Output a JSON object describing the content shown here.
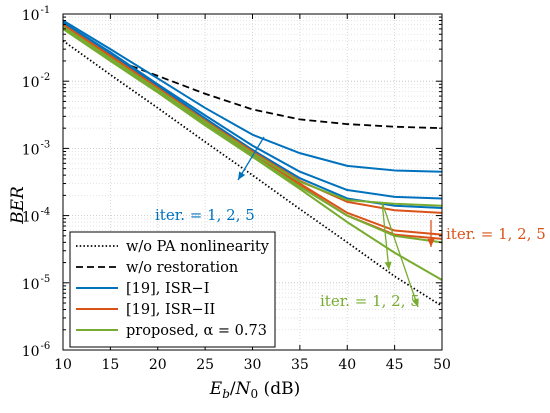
{
  "chart_data": {
    "type": "line",
    "xlabel_parts": [
      "E",
      "b",
      "/",
      "N",
      "0",
      " (dB)"
    ],
    "ylabel": "BER",
    "xlim": [
      10,
      50
    ],
    "ylim_log10": [
      -6,
      -1
    ],
    "y_scale": "log",
    "xticks": [
      10,
      15,
      20,
      25,
      30,
      35,
      40,
      45,
      50
    ],
    "ytick_labels": [
      {
        "exp": -1,
        "label": "10",
        "sup": "-1"
      },
      {
        "exp": -2,
        "label": "10",
        "sup": "-2"
      },
      {
        "exp": -3,
        "label": "10",
        "sup": "-3"
      },
      {
        "exp": -4,
        "label": "10",
        "sup": "-4"
      },
      {
        "exp": -5,
        "label": "10",
        "sup": "-5"
      },
      {
        "exp": -6,
        "label": "10",
        "sup": "-6"
      }
    ],
    "grid": true,
    "legend_position": "bottom-left",
    "series": [
      {
        "name": "w/o PA nonlinearity",
        "color": "#000000",
        "style": "dotted",
        "x": [
          10,
          15,
          20,
          25,
          30,
          35,
          40,
          45,
          50
        ],
        "y": [
          0.04,
          0.0125,
          0.004,
          0.00125,
          0.0004,
          0.000125,
          4e-05,
          1.25e-05,
          4.5e-06
        ]
      },
      {
        "name": "w/o restoration",
        "color": "#000000",
        "style": "dashed",
        "x": [
          15,
          20,
          25,
          30,
          35,
          40,
          45,
          50
        ],
        "y": [
          0.022,
          0.012,
          0.0065,
          0.0038,
          0.0027,
          0.0023,
          0.0021,
          0.002
        ]
      },
      {
        "name": "[19], ISR−I",
        "color": "#0072bd",
        "style": "solid",
        "x": [
          10,
          15,
          20,
          25,
          30,
          35,
          40,
          45,
          50
        ],
        "y": [
          0.08,
          0.03,
          0.011,
          0.004,
          0.0016,
          0.00085,
          0.00055,
          0.00047,
          0.00045
        ]
      },
      {
        "name": "",
        "color": "#0072bd",
        "style": "solid",
        "x": [
          10,
          15,
          20,
          25,
          30,
          35,
          40,
          45,
          50
        ],
        "y": [
          0.075,
          0.027,
          0.009,
          0.0031,
          0.0011,
          0.00045,
          0.00024,
          0.00019,
          0.00018
        ]
      },
      {
        "name": "",
        "color": "#0072bd",
        "style": "solid",
        "x": [
          10,
          15,
          20,
          25,
          30,
          35,
          40,
          45,
          50
        ],
        "y": [
          0.07,
          0.025,
          0.0085,
          0.0028,
          0.00095,
          0.00036,
          0.00018,
          0.00014,
          0.00013
        ]
      },
      {
        "name": "[19], ISR−II",
        "color": "#d95319",
        "style": "solid",
        "x": [
          10,
          15,
          20,
          25,
          30,
          35,
          40,
          45,
          50
        ],
        "y": [
          0.07,
          0.024,
          0.008,
          0.0026,
          0.0009,
          0.00033,
          0.00016,
          0.00012,
          0.00011
        ]
      },
      {
        "name": "",
        "color": "#d95319",
        "style": "solid",
        "x": [
          10,
          15,
          20,
          25,
          30,
          35,
          40,
          45,
          50
        ],
        "y": [
          0.068,
          0.023,
          0.0075,
          0.0025,
          0.00085,
          0.0003,
          0.00011,
          6e-05,
          5.2e-05
        ]
      },
      {
        "name": "",
        "color": "#d95319",
        "style": "solid",
        "x": [
          10,
          15,
          20,
          25,
          30,
          35,
          40,
          45,
          50
        ],
        "y": [
          0.065,
          0.022,
          0.0072,
          0.0024,
          0.0008,
          0.00028,
          0.0001,
          5.2e-05,
          4.5e-05
        ]
      },
      {
        "name": "proposed, α = 0.73",
        "color": "#77ac30",
        "style": "solid",
        "x": [
          10,
          15,
          20,
          25,
          30,
          35,
          40,
          45,
          50
        ],
        "y": [
          0.065,
          0.022,
          0.0075,
          0.0025,
          0.00085,
          0.00032,
          0.00017,
          0.00015,
          0.00014
        ]
      },
      {
        "name": "",
        "color": "#77ac30",
        "style": "solid",
        "x": [
          10,
          15,
          20,
          25,
          30,
          35,
          40,
          45,
          50
        ],
        "y": [
          0.062,
          0.021,
          0.007,
          0.0023,
          0.00078,
          0.00027,
          0.0001,
          5e-05,
          4e-05
        ]
      },
      {
        "name": "",
        "color": "#77ac30",
        "style": "solid",
        "x": [
          10,
          15,
          20,
          25,
          30,
          35,
          40,
          45,
          50
        ],
        "y": [
          0.06,
          0.02,
          0.0068,
          0.0022,
          0.00075,
          0.00025,
          8e-05,
          2.8e-05,
          1.1e-05
        ]
      }
    ],
    "annotations": [
      {
        "text": "iter. = 1, 2, 5",
        "color": "#0072bd"
      },
      {
        "text": "iter. = 1, 2, 5",
        "color": "#d95319"
      },
      {
        "text": "iter. = 1, 2, 5",
        "color": "#77ac30"
      }
    ]
  }
}
